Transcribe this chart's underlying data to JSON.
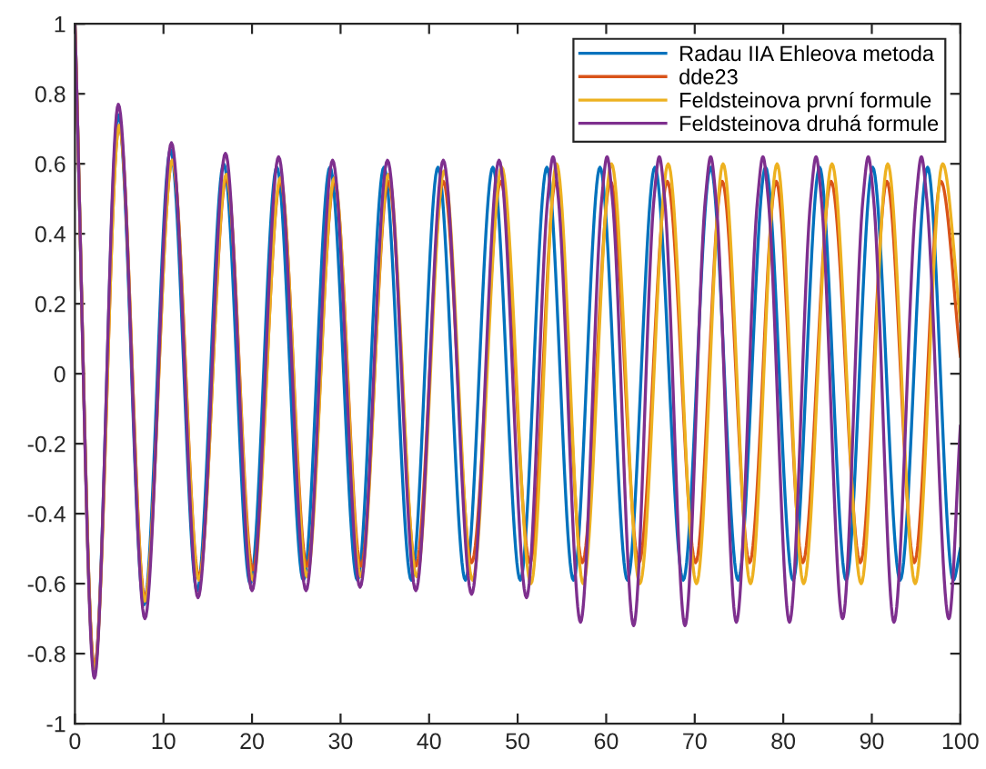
{
  "chart_data": {
    "type": "line",
    "xlim": [
      0,
      100
    ],
    "xticks": [
      0,
      10,
      20,
      30,
      40,
      50,
      60,
      70,
      80,
      90,
      100
    ],
    "ylim": [
      -1,
      1
    ],
    "yticks": [
      -1,
      -0.8,
      -0.6,
      -0.4,
      -0.2,
      0,
      0.2,
      0.4,
      0.6,
      0.8,
      1
    ],
    "grid": false,
    "legend": "top right",
    "marker": "none",
    "line_style": "solid",
    "series": [
      {
        "name": "Radau IIA Ehleova metoda",
        "color": "#0072bd",
        "x": [
          0,
          2.2,
          4.9,
          7.8,
          10.8,
          13.8,
          16.8,
          19.8,
          22.8,
          25.8,
          28.8,
          31.9,
          34.9,
          38.0,
          41.0,
          44.1,
          47.2,
          50.3,
          53.3,
          56.3,
          59.3,
          62.4,
          65.5,
          68.7,
          71.8,
          74.9,
          78.0,
          81.1,
          84.1,
          87.1,
          90.1,
          93.2,
          96.3,
          99.2,
          100
        ],
        "values": [
          1,
          -0.85,
          0.74,
          -0.66,
          0.64,
          -0.62,
          0.6,
          -0.6,
          0.59,
          -0.59,
          0.59,
          -0.59,
          0.59,
          -0.59,
          0.59,
          -0.59,
          0.59,
          -0.59,
          0.59,
          -0.59,
          0.59,
          -0.59,
          0.59,
          -0.59,
          0.59,
          -0.59,
          0.59,
          -0.59,
          0.59,
          -0.59,
          0.59,
          -0.59,
          0.59,
          -0.59,
          -0.5
        ]
      },
      {
        "name": "dde23",
        "color": "#d95319",
        "x": [
          0,
          2.2,
          5.0,
          7.9,
          11.0,
          14.0,
          17.1,
          20.1,
          23.2,
          26.2,
          29.3,
          32.3,
          35.4,
          38.5,
          41.6,
          44.8,
          48.1,
          51.4,
          54.3,
          57.3,
          60.5,
          63.7,
          66.9,
          70.1,
          73.1,
          76.2,
          79.2,
          82.2,
          85.4,
          88.7,
          91.7,
          94.8,
          97.8,
          100
        ],
        "values": [
          1,
          -0.84,
          0.71,
          -0.64,
          0.61,
          -0.58,
          0.56,
          -0.56,
          0.55,
          -0.55,
          0.55,
          -0.55,
          0.55,
          -0.55,
          0.55,
          -0.54,
          0.55,
          -0.54,
          0.55,
          -0.54,
          0.55,
          -0.54,
          0.55,
          -0.54,
          0.55,
          -0.54,
          0.55,
          -0.54,
          0.55,
          -0.54,
          0.55,
          -0.54,
          0.55,
          0.05
        ]
      },
      {
        "name": "Feldsteinova první formule",
        "color": "#edb120",
        "x": [
          0,
          2.2,
          5.0,
          7.9,
          11.0,
          14.0,
          17.1,
          20.1,
          23.2,
          26.2,
          29.3,
          32.3,
          35.4,
          38.6,
          41.7,
          44.9,
          48.2,
          51.5,
          54.4,
          57.4,
          60.6,
          63.8,
          67.0,
          70.2,
          73.2,
          76.3,
          79.3,
          82.3,
          85.5,
          88.8,
          91.8,
          94.9,
          98.0,
          100
        ],
        "values": [
          1,
          -0.85,
          0.71,
          -0.65,
          0.61,
          -0.59,
          0.57,
          -0.59,
          0.56,
          -0.58,
          0.56,
          -0.58,
          0.57,
          -0.58,
          0.58,
          -0.59,
          0.59,
          -0.6,
          0.6,
          -0.6,
          0.6,
          -0.6,
          0.6,
          -0.6,
          0.6,
          -0.6,
          0.6,
          -0.6,
          0.6,
          -0.6,
          0.6,
          -0.6,
          0.6,
          0.15
        ]
      },
      {
        "name": "Feldsteinova druhá formule",
        "color": "#7e2f8e",
        "x": [
          0,
          2.2,
          4.9,
          7.9,
          10.9,
          13.9,
          17.0,
          20.0,
          23.0,
          26.1,
          29.1,
          32.2,
          35.3,
          38.5,
          41.6,
          44.8,
          47.9,
          51.0,
          53.4,
          54.0,
          54.6,
          57.1,
          59.5,
          60.1,
          60.7,
          63.1,
          65.4,
          66.0,
          66.6,
          68.9,
          71.2,
          71.8,
          72.4,
          74.7,
          77.1,
          77.7,
          78.3,
          80.7,
          83.1,
          83.7,
          84.3,
          86.7,
          89.0,
          89.6,
          90.2,
          92.5,
          95.0,
          95.6,
          96.2,
          98.7,
          100
        ],
        "values": [
          1,
          -0.87,
          0.77,
          -0.7,
          0.66,
          -0.64,
          0.63,
          -0.62,
          0.62,
          -0.62,
          0.61,
          -0.61,
          0.61,
          -0.62,
          0.61,
          -0.63,
          0.61,
          -0.64,
          0.5,
          0.62,
          0.5,
          -0.71,
          0.5,
          0.62,
          0.5,
          -0.72,
          0.5,
          0.62,
          0.5,
          -0.72,
          0.5,
          0.62,
          0.5,
          -0.71,
          0.5,
          0.62,
          0.5,
          -0.71,
          0.5,
          0.62,
          0.5,
          -0.7,
          0.5,
          0.62,
          0.5,
          -0.71,
          0.5,
          0.62,
          0.5,
          -0.7,
          -0.15
        ]
      }
    ]
  }
}
